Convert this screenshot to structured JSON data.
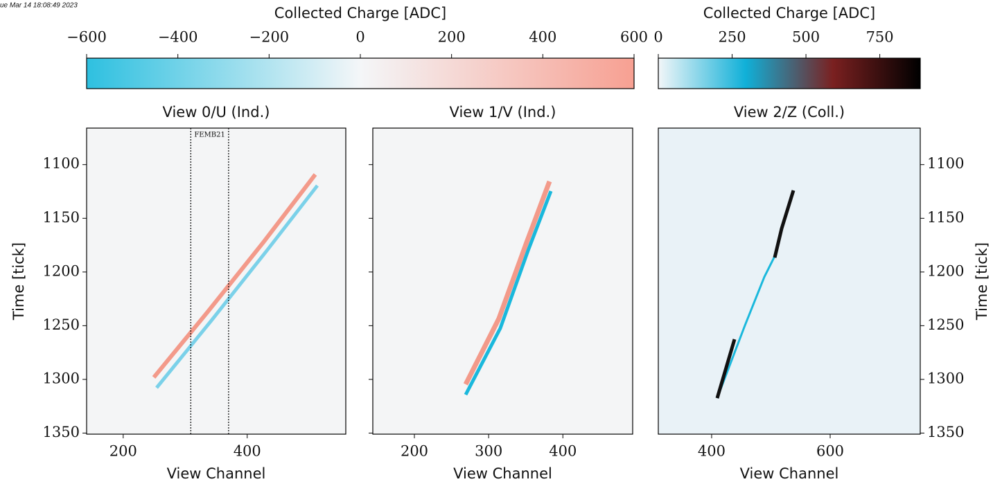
{
  "header_text": "ue Mar 14 18:08:49 2023",
  "chart_data": [
    {
      "type": "colorbar",
      "label": "Collected Charge [ADC]",
      "xlim": [
        -600,
        600
      ],
      "xticks": [
        {
          "value": -600,
          "label": "−600"
        },
        {
          "value": -400,
          "label": "−400"
        },
        {
          "value": -200,
          "label": "−200"
        },
        0,
        200,
        400,
        600
      ],
      "colors": [
        "#2ec0e0",
        "#f4f6f8",
        "#f7a092"
      ]
    },
    {
      "type": "colorbar",
      "label": "Collected Charge [ADC]",
      "xlim": [
        0,
        887
      ],
      "xticks": [
        0,
        250,
        500,
        750
      ],
      "colors": [
        "#f2f6f8",
        "#10b0d8",
        "#7a2020",
        "#000000"
      ]
    },
    {
      "type": "heatmap",
      "title": "View 0/U (Ind.)",
      "xlabel": "View Channel",
      "ylabel": "Time [tick]",
      "ytick_side": "left",
      "ytick_labels": true,
      "xlim": [
        141,
        559
      ],
      "xticks": [
        200,
        400
      ],
      "ylim": [
        1066,
        1351
      ],
      "y_inverted": true,
      "yticks": [
        1100,
        1150,
        1200,
        1250,
        1300,
        1350
      ],
      "annotations": [
        {
          "text": "FEMB21",
          "x0": 309,
          "x1": 370
        }
      ]
    },
    {
      "type": "heatmap",
      "title": "View 1/V (Ind.)",
      "xlabel": "View Channel",
      "ytick_side": "left",
      "ytick_labels": false,
      "xlim": [
        144,
        494
      ],
      "xticks": [
        200,
        300,
        400
      ],
      "ylim": [
        1066,
        1351
      ],
      "y_inverted": true,
      "yticks": [
        1100,
        1150,
        1200,
        1250,
        1300,
        1350
      ]
    },
    {
      "type": "heatmap",
      "title": "View 2/Z (Coll.)",
      "xlabel": "View Channel",
      "ylabel": "Time [tick]",
      "ytick_side": "right",
      "ytick_labels": true,
      "xlim": [
        310,
        752
      ],
      "xticks": [
        400,
        600
      ],
      "ylim": [
        1066,
        1351
      ],
      "y_inverted": true,
      "yticks": [
        1100,
        1150,
        1200,
        1250,
        1300,
        1350
      ]
    }
  ]
}
